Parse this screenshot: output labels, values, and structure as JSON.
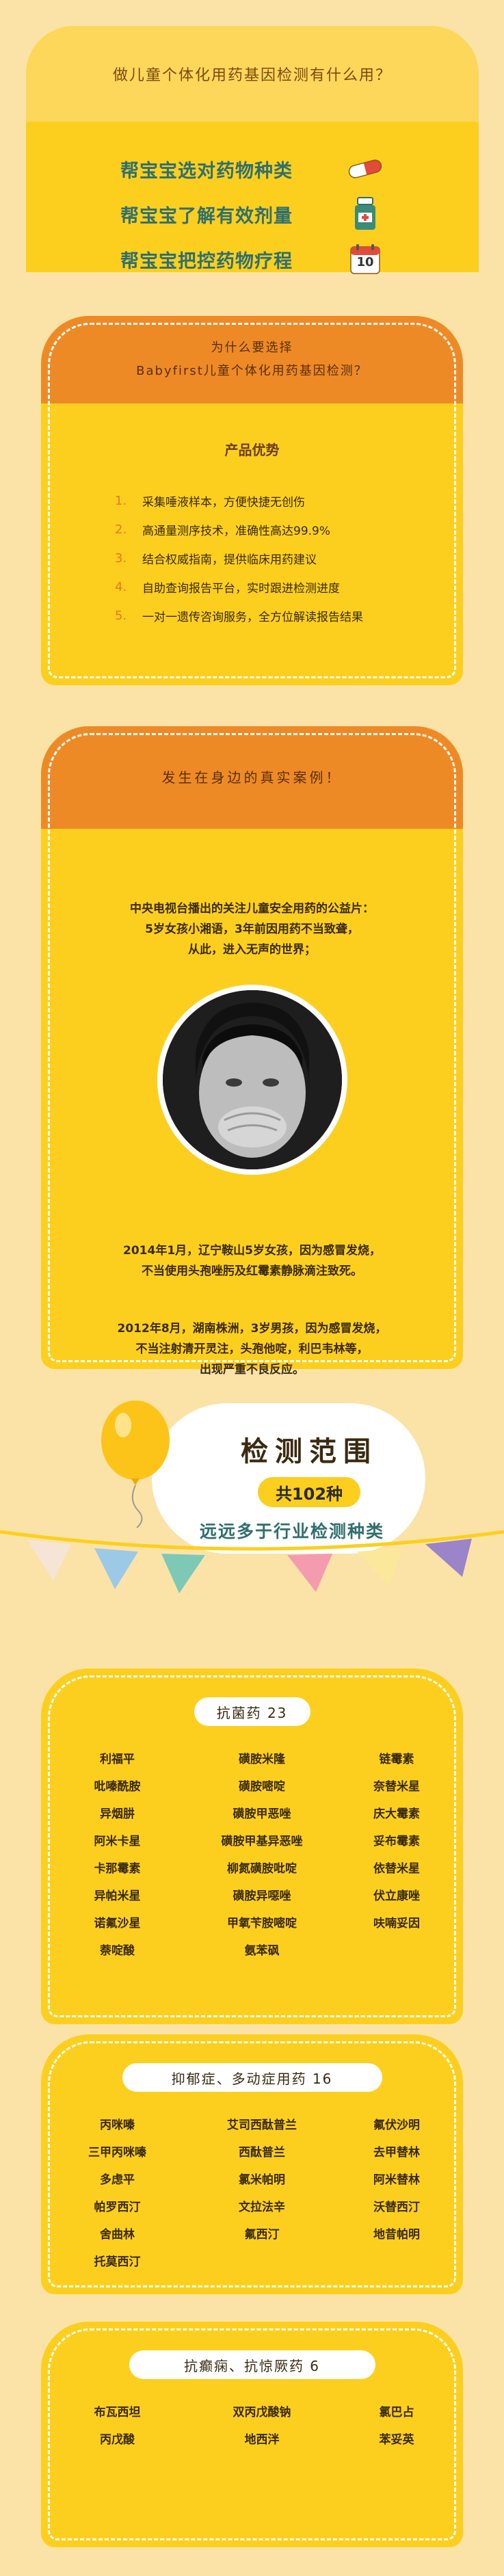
{
  "intro": {
    "title": "做儿童个体化用药基因检测有什么用？",
    "benefits": [
      {
        "label": "帮宝宝选对药物种类",
        "icon": "capsule-icon"
      },
      {
        "label": "帮宝宝了解有效剂量",
        "icon": "medicine-bottle-icon"
      },
      {
        "label": "帮宝宝把控药物疗程",
        "icon": "calendar-icon"
      }
    ],
    "calendar_day": "10"
  },
  "why": {
    "title_line1": "为什么要选择",
    "title_line2": "Babyfirst儿童个体化用药基因检测？",
    "advantages_title": "产品优势",
    "advantages": [
      {
        "num": "1.",
        "text": "采集唾液样本，方便快捷无创伤"
      },
      {
        "num": "2.",
        "text": "高通量测序技术，准确性高达99.9%"
      },
      {
        "num": "3.",
        "text": "结合权威指南，提供临床用药建议"
      },
      {
        "num": "4.",
        "text": "自助查询报告平台，实时跟进检测进度"
      },
      {
        "num": "5.",
        "text": "一对一遗传咨询服务，全方位解读报告结果"
      }
    ]
  },
  "cases": {
    "title": "发生在身边的真实案例！",
    "para1": [
      "中央电视台播出的关注儿童安全用药的公益片：",
      "5岁女孩小湘语，3年前因用药不当致聋，",
      "从此，进入无声的世界；"
    ],
    "para2": [
      "2014年1月，辽宁鞍山5岁女孩，因为感冒发烧，",
      "不当使用头孢唑肟及红霉素静脉滴注致死。"
    ],
    "para3": [
      "2012年8月，湖南株洲，3岁男孩，因为感冒发烧，",
      "不当注射清开灵注，头孢他啶，利巴韦林等，",
      "出现严重不良反应。"
    ]
  },
  "range": {
    "title": "检测范围",
    "count": "共102种",
    "subtitle": "远远多于行业检测种类"
  },
  "colors": {
    "accent_yellow": "#FCCF1E",
    "accent_orange": "#EE8A26",
    "text_teal": "#2F6F6E",
    "background": "#FBE3A7"
  },
  "drug_groups": [
    {
      "title": "抗菌药 23",
      "drugs": [
        "利福平",
        "磺胺米隆",
        "链霉素",
        "吡嗪酰胺",
        "磺胺嘧啶",
        "奈替米星",
        "异烟肼",
        "磺胺甲恶唑",
        "庆大霉素",
        "阿米卡星",
        "磺胺甲基异恶唑",
        "妥布霉素",
        "卡那霉素",
        "柳氮磺胺吡啶",
        "依替米星",
        "异帕米星",
        "磺胺异噁唑",
        "伏立康唑",
        "诺氟沙星",
        "甲氧苄胺嘧啶",
        "呋喃妥因",
        "萘啶酸",
        "氨苯砜"
      ]
    },
    {
      "title": "抑郁症、多动症用药 16",
      "drugs": [
        "丙咪嗪",
        "艾司西酞普兰",
        "氟伏沙明",
        "三甲丙咪嗪",
        "西酞普兰",
        "去甲替林",
        "多虑平",
        "氯米帕明",
        "阿米替林",
        "帕罗西汀",
        "文拉法辛",
        "沃替西汀",
        "舍曲林",
        "氟西汀",
        "地昔帕明",
        "托莫西汀"
      ]
    },
    {
      "title": "抗癫痫、抗惊厥药 6",
      "drugs": [
        "布瓦西坦",
        "双丙戊酸钠",
        "氯巴占",
        "丙戊酸",
        "地西泮",
        "苯妥英"
      ]
    }
  ]
}
